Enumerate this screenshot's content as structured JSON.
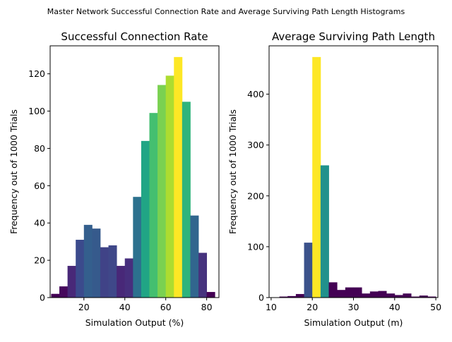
{
  "suptitle": "Master Network Successful Connection Rate and Average Surviving Path Length Histograms",
  "chart_data": [
    {
      "type": "bar",
      "title": "Successful Connection Rate",
      "xlabel": "Simulation Output (%)",
      "ylabel": "Frequency out of 1000 Trials",
      "xlim": [
        3.5,
        86
      ],
      "ylim": [
        0,
        135
      ],
      "xticks": [
        20,
        40,
        60,
        80
      ],
      "yticks": [
        0,
        20,
        40,
        60,
        80,
        100,
        120
      ],
      "bin_width": 4,
      "bins": [
        {
          "x": 6,
          "value": 2,
          "color": "#440154"
        },
        {
          "x": 10,
          "value": 6,
          "color": "#46085c"
        },
        {
          "x": 14,
          "value": 17,
          "color": "#482878"
        },
        {
          "x": 18,
          "value": 31,
          "color": "#3b4a8c"
        },
        {
          "x": 22,
          "value": 39,
          "color": "#345f8d"
        },
        {
          "x": 26,
          "value": 37,
          "color": "#365a8c"
        },
        {
          "x": 30,
          "value": 27,
          "color": "#404387"
        },
        {
          "x": 34,
          "value": 28,
          "color": "#3f4889"
        },
        {
          "x": 38,
          "value": 17,
          "color": "#482878"
        },
        {
          "x": 42,
          "value": 21,
          "color": "#472f7d"
        },
        {
          "x": 46,
          "value": 54,
          "color": "#2c718e"
        },
        {
          "x": 50,
          "value": 84,
          "color": "#21a585"
        },
        {
          "x": 54,
          "value": 99,
          "color": "#44bf70"
        },
        {
          "x": 58,
          "value": 114,
          "color": "#7ad151"
        },
        {
          "x": 62,
          "value": 119,
          "color": "#addc30"
        },
        {
          "x": 66,
          "value": 129,
          "color": "#fde725"
        },
        {
          "x": 70,
          "value": 105,
          "color": "#2fb47c"
        },
        {
          "x": 74,
          "value": 44,
          "color": "#31668e"
        },
        {
          "x": 78,
          "value": 24,
          "color": "#46337e"
        },
        {
          "x": 82,
          "value": 3,
          "color": "#440154"
        }
      ]
    },
    {
      "type": "bar",
      "title": "Average Surviving Path Length",
      "xlabel": "Simulation Output (m)",
      "ylabel": "Frequency out of 1000 Trials",
      "xlim": [
        9.5,
        50.5
      ],
      "ylim": [
        0,
        495
      ],
      "xticks": [
        10,
        20,
        30,
        40,
        50
      ],
      "yticks": [
        0,
        100,
        200,
        300,
        400
      ],
      "bin_width": 2,
      "bins": [
        {
          "x": 11,
          "value": 0,
          "color": "#440154"
        },
        {
          "x": 13,
          "value": 2,
          "color": "#440154"
        },
        {
          "x": 15,
          "value": 3,
          "color": "#440154"
        },
        {
          "x": 17,
          "value": 7,
          "color": "#440154"
        },
        {
          "x": 19,
          "value": 108,
          "color": "#3b528b"
        },
        {
          "x": 21,
          "value": 473,
          "color": "#fde725"
        },
        {
          "x": 23,
          "value": 260,
          "color": "#21918c"
        },
        {
          "x": 25,
          "value": 30,
          "color": "#440154"
        },
        {
          "x": 27,
          "value": 15,
          "color": "#440154"
        },
        {
          "x": 29,
          "value": 20,
          "color": "#440154"
        },
        {
          "x": 31,
          "value": 20,
          "color": "#440154"
        },
        {
          "x": 33,
          "value": 8,
          "color": "#440154"
        },
        {
          "x": 35,
          "value": 12,
          "color": "#440154"
        },
        {
          "x": 37,
          "value": 13,
          "color": "#440154"
        },
        {
          "x": 39,
          "value": 8,
          "color": "#440154"
        },
        {
          "x": 41,
          "value": 5,
          "color": "#440154"
        },
        {
          "x": 43,
          "value": 8,
          "color": "#440154"
        },
        {
          "x": 45,
          "value": 2,
          "color": "#440154"
        },
        {
          "x": 47,
          "value": 4,
          "color": "#440154"
        },
        {
          "x": 49,
          "value": 2,
          "color": "#440154"
        }
      ]
    }
  ]
}
